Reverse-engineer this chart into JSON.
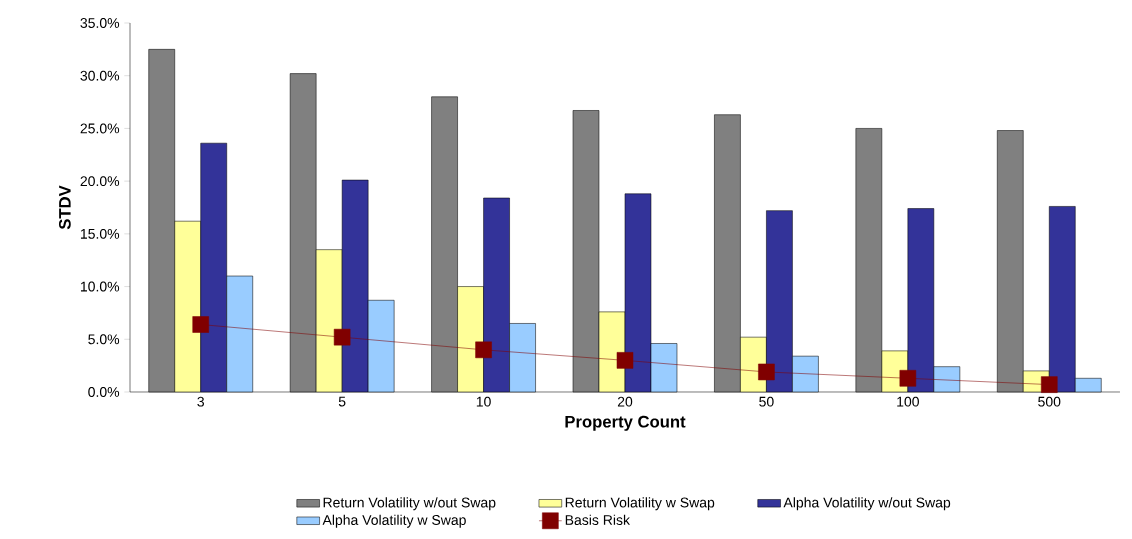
{
  "chart_data": {
    "type": "bar",
    "xlabel": "Property Count",
    "ylabel": "STDV",
    "categories": [
      "3",
      "5",
      "10",
      "20",
      "50",
      "100",
      "500"
    ],
    "ylim": [
      0,
      35
    ],
    "yticks": [
      {
        "value": 0,
        "label": "0.0%"
      },
      {
        "value": 5,
        "label": "5.0%"
      },
      {
        "value": 10,
        "label": "10.0%"
      },
      {
        "value": 15,
        "label": "15.0%"
      },
      {
        "value": 20,
        "label": "20.0%"
      },
      {
        "value": 25,
        "label": "25.0%"
      },
      {
        "value": 30,
        "label": "30.0%"
      },
      {
        "value": 35,
        "label": "35.0%"
      }
    ],
    "legend": "bottom",
    "series": [
      {
        "name": "Return Volatility w/out Swap",
        "color": "#808080",
        "values": [
          32.5,
          30.2,
          28.0,
          26.7,
          26.3,
          25.0,
          24.8
        ]
      },
      {
        "name": "Return Volatility w Swap",
        "color": "#ffff99",
        "values": [
          16.2,
          13.5,
          10.0,
          7.6,
          5.2,
          3.9,
          2.0
        ]
      },
      {
        "name": "Alpha Volatility w/out Swap",
        "color": "#333399",
        "values": [
          23.6,
          20.1,
          18.4,
          18.8,
          17.2,
          17.4,
          17.6
        ]
      },
      {
        "name": "Alpha Volatility w Swap",
        "color": "#99ccff",
        "values": [
          11.0,
          8.7,
          6.5,
          4.6,
          3.4,
          2.4,
          1.3
        ]
      },
      {
        "name": "Basis Risk",
        "type": "line",
        "marker": "square",
        "color": "#800000",
        "values": [
          6.4,
          5.2,
          4.0,
          3.0,
          1.9,
          1.3,
          0.7
        ]
      }
    ]
  }
}
